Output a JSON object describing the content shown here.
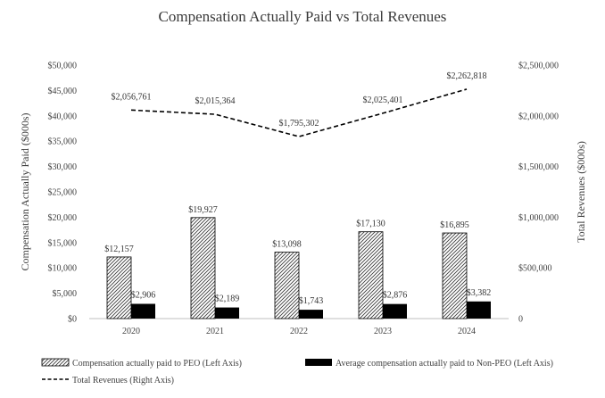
{
  "chart_data": {
    "type": "bar+line",
    "title": "Compensation Actually Paid vs Total Revenues",
    "categories": [
      "2020",
      "2021",
      "2022",
      "2023",
      "2024"
    ],
    "left_axis": {
      "label": "Compensation Actually Paid ($000s)",
      "range": [
        0,
        50000
      ],
      "step": 5000,
      "tick_labels": [
        "$0",
        "$5,000",
        "$10,000",
        "$15,000",
        "$20,000",
        "$25,000",
        "$30,000",
        "$35,000",
        "$40,000",
        "$45,000",
        "$50,000"
      ]
    },
    "right_axis": {
      "label": "Total Revenues ($000s)",
      "range": [
        0,
        2500000
      ],
      "step": 500000,
      "tick_labels": [
        "0",
        "$500,000",
        "$1,000,000",
        "$1,500,000",
        "$2,000,000",
        "$2,500,000"
      ]
    },
    "series": [
      {
        "name": "Compensation actually paid to PEO (Left Axis)",
        "type": "bar",
        "pattern": "hatched",
        "axis": "left",
        "values": [
          12157,
          19927,
          13098,
          17130,
          16895
        ],
        "labels": [
          "$12,157",
          "$19,927",
          "$13,098",
          "$17,130",
          "$16,895"
        ]
      },
      {
        "name": "Average compensation actually paid to Non-PEO (Left Axis)",
        "type": "bar",
        "pattern": "solid",
        "color": "#000000",
        "axis": "left",
        "values": [
          2906,
          2189,
          1743,
          2876,
          3382
        ],
        "labels": [
          "$2,906",
          "$2,189",
          "$1,743",
          "$2,876",
          "$3,382"
        ]
      },
      {
        "name": "Total Revenues (Right Axis)",
        "type": "line",
        "style": "dashed",
        "color": "#000000",
        "axis": "right",
        "values": [
          2056761,
          2015364,
          1795302,
          2025401,
          2262818
        ],
        "labels": [
          "$2,056,761",
          "$2,015,364",
          "$1,795,302",
          "$2,025,401",
          "$2,262,818"
        ]
      }
    ],
    "legend": {
      "position": "bottom",
      "entries": [
        "Compensation actually paid to PEO (Left Axis)",
        "Average compensation actually paid to Non-PEO (Left Axis)",
        "Total Revenues (Right Axis)"
      ]
    },
    "grid": false
  }
}
